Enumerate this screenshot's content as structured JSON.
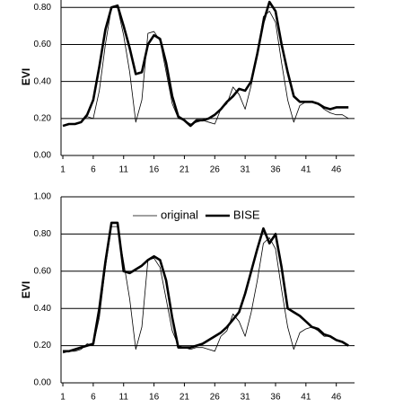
{
  "chart_data": [
    {
      "type": "line",
      "y_label": "EVI",
      "ylim": [
        0,
        0.85
      ],
      "xlim": [
        0.7,
        49
      ],
      "yticks": [
        {
          "value": 0,
          "label": "0.00"
        },
        {
          "value": 0.2,
          "label": "0.20"
        },
        {
          "value": 0.4,
          "label": "0.40"
        },
        {
          "value": 0.6,
          "label": "0.60"
        },
        {
          "value": 0.8,
          "label": "0.80"
        }
      ],
      "xticks": [
        1,
        6,
        11,
        16,
        21,
        26,
        31,
        36,
        41,
        46
      ],
      "grid": true,
      "x": [
        1,
        2,
        3,
        4,
        5,
        6,
        7,
        8,
        9,
        10,
        11,
        12,
        13,
        14,
        15,
        16,
        17,
        18,
        19,
        20,
        21,
        22,
        23,
        24,
        25,
        26,
        27,
        28,
        29,
        30,
        31,
        32,
        33,
        34,
        35,
        36,
        37,
        38,
        39,
        40,
        41,
        42,
        43,
        44,
        45,
        46,
        47,
        48
      ],
      "series": [
        {
          "name": "original",
          "color": "#000000",
          "values": [
            0.16,
            0.17,
            0.17,
            0.18,
            0.21,
            0.2,
            0.35,
            0.6,
            0.8,
            0.8,
            0.65,
            0.45,
            0.18,
            0.3,
            0.66,
            0.67,
            0.62,
            0.45,
            0.28,
            0.2,
            0.19,
            0.17,
            0.18,
            0.19,
            0.18,
            0.17,
            0.25,
            0.28,
            0.37,
            0.33,
            0.25,
            0.38,
            0.55,
            0.75,
            0.78,
            0.72,
            0.5,
            0.3,
            0.18,
            0.27,
            0.29,
            0.29,
            0.28,
            0.25,
            0.23,
            0.22,
            0.22,
            0.2
          ]
        },
        {
          "name": "BISE",
          "color": "#000000",
          "values": [
            0.16,
            0.17,
            0.17,
            0.18,
            0.22,
            0.3,
            0.48,
            0.68,
            0.8,
            0.81,
            0.7,
            0.58,
            0.44,
            0.45,
            0.6,
            0.65,
            0.63,
            0.5,
            0.32,
            0.21,
            0.19,
            0.16,
            0.19,
            0.19,
            0.2,
            0.22,
            0.25,
            0.29,
            0.32,
            0.36,
            0.35,
            0.4,
            0.55,
            0.72,
            0.83,
            0.78,
            0.6,
            0.45,
            0.32,
            0.29,
            0.29,
            0.29,
            0.28,
            0.26,
            0.25,
            0.26,
            0.26,
            0.26
          ]
        }
      ]
    },
    {
      "type": "line",
      "y_label": "EVI",
      "ylim": [
        0,
        1
      ],
      "xlim": [
        0.7,
        49
      ],
      "legend": "top",
      "yticks": [
        {
          "value": 0,
          "label": "0.00"
        },
        {
          "value": 0.2,
          "label": "0.20"
        },
        {
          "value": 0.4,
          "label": "0.40"
        },
        {
          "value": 0.6,
          "label": "0.60"
        },
        {
          "value": 0.8,
          "label": "0.80"
        },
        {
          "value": 1,
          "label": "1.00"
        }
      ],
      "xticks": [
        1,
        6,
        11,
        16,
        21,
        26,
        31,
        36,
        41,
        46
      ],
      "grid": true,
      "x": [
        1,
        2,
        3,
        4,
        5,
        6,
        7,
        8,
        9,
        10,
        11,
        12,
        13,
        14,
        15,
        16,
        17,
        18,
        19,
        20,
        21,
        22,
        23,
        24,
        25,
        26,
        27,
        28,
        29,
        30,
        31,
        32,
        33,
        34,
        35,
        36,
        37,
        38,
        39,
        40,
        41,
        42,
        43,
        44,
        45,
        46,
        47,
        48
      ],
      "series": [
        {
          "name": "original",
          "color": "#000000",
          "values": [
            0.16,
            0.17,
            0.17,
            0.18,
            0.21,
            0.2,
            0.35,
            0.62,
            0.84,
            0.84,
            0.65,
            0.45,
            0.18,
            0.3,
            0.66,
            0.67,
            0.62,
            0.45,
            0.28,
            0.2,
            0.19,
            0.18,
            0.19,
            0.19,
            0.18,
            0.17,
            0.25,
            0.28,
            0.37,
            0.33,
            0.25,
            0.38,
            0.55,
            0.75,
            0.78,
            0.72,
            0.5,
            0.3,
            0.18,
            0.27,
            0.29,
            0.3,
            0.28,
            0.25,
            0.25,
            0.23,
            0.22,
            0.2
          ]
        },
        {
          "name": "BISE",
          "color": "#000000",
          "values": [
            0.17,
            0.17,
            0.18,
            0.19,
            0.2,
            0.21,
            0.4,
            0.65,
            0.86,
            0.86,
            0.6,
            0.59,
            0.61,
            0.63,
            0.66,
            0.68,
            0.66,
            0.55,
            0.35,
            0.19,
            0.19,
            0.19,
            0.2,
            0.21,
            0.23,
            0.25,
            0.27,
            0.3,
            0.34,
            0.38,
            0.48,
            0.6,
            0.72,
            0.83,
            0.75,
            0.8,
            0.62,
            0.4,
            0.38,
            0.36,
            0.33,
            0.3,
            0.29,
            0.26,
            0.25,
            0.23,
            0.22,
            0.2
          ]
        }
      ]
    }
  ]
}
